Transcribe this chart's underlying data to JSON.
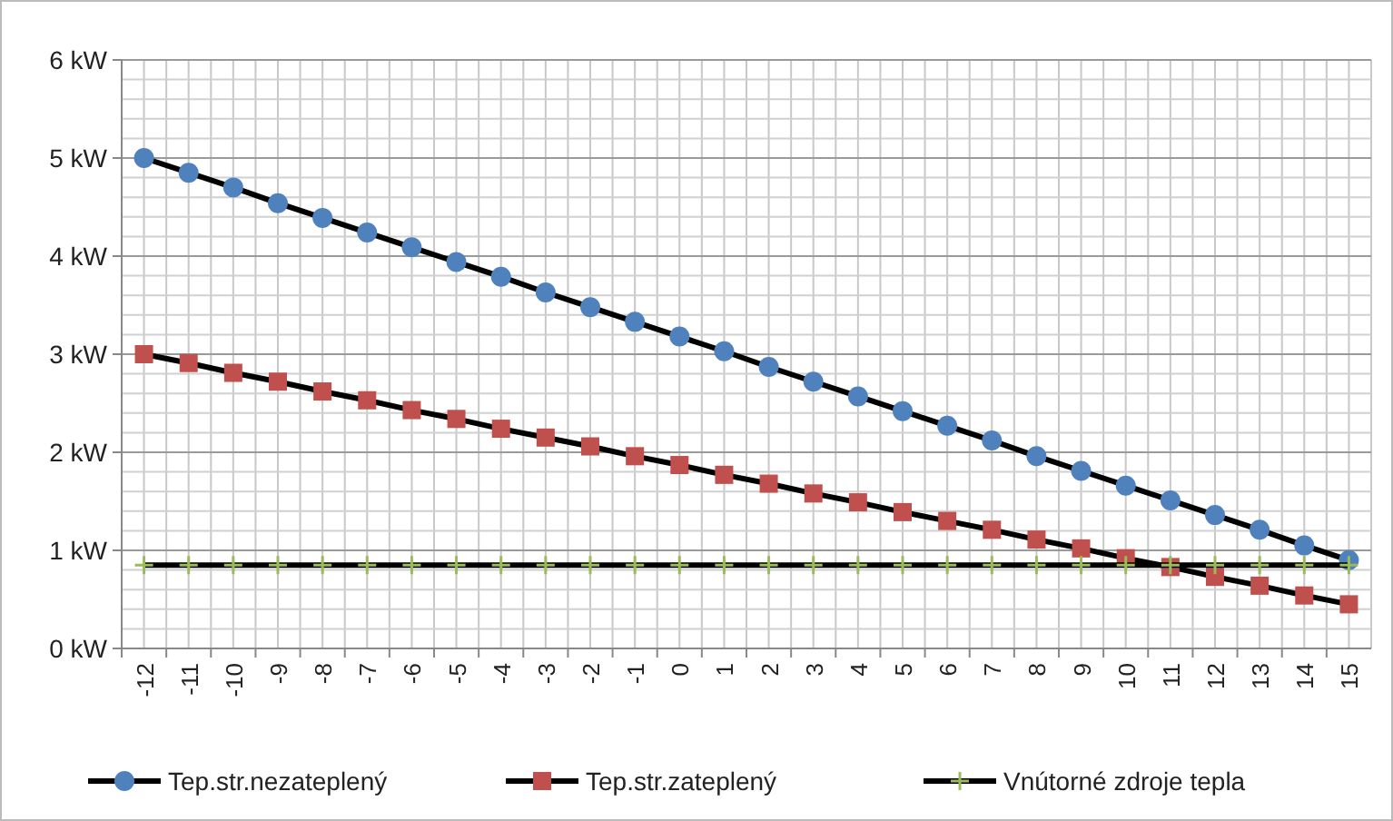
{
  "chart_data": {
    "type": "line",
    "categories": [
      "-12",
      "-11",
      "-10",
      "-9",
      "-8",
      "-7",
      "-6",
      "-5",
      "-4",
      "-3",
      "-2",
      "-1",
      "0",
      "1",
      "2",
      "3",
      "4",
      "5",
      "6",
      "7",
      "8",
      "9",
      "10",
      "11",
      "12",
      "13",
      "14",
      "15"
    ],
    "series": [
      {
        "name": "Tep.str.nezateplený",
        "color": "#4f81bd",
        "marker": "circle",
        "values": [
          5.0,
          4.85,
          4.7,
          4.54,
          4.39,
          4.24,
          4.09,
          3.94,
          3.79,
          3.63,
          3.48,
          3.33,
          3.18,
          3.03,
          2.87,
          2.72,
          2.57,
          2.42,
          2.27,
          2.12,
          1.96,
          1.81,
          1.66,
          1.51,
          1.36,
          1.21,
          1.05,
          0.9
        ]
      },
      {
        "name": "Tep.str.zateplený",
        "color": "#c0504d",
        "marker": "square",
        "values": [
          3.0,
          2.91,
          2.81,
          2.72,
          2.62,
          2.53,
          2.43,
          2.34,
          2.24,
          2.15,
          2.06,
          1.96,
          1.87,
          1.77,
          1.68,
          1.58,
          1.49,
          1.39,
          1.3,
          1.21,
          1.11,
          1.02,
          0.92,
          0.83,
          0.73,
          0.64,
          0.54,
          0.45
        ]
      },
      {
        "name": "Vnútorné zdroje tepla",
        "color": "#9bbb59",
        "marker": "cross",
        "values": [
          0.85,
          0.85,
          0.85,
          0.85,
          0.85,
          0.85,
          0.85,
          0.85,
          0.85,
          0.85,
          0.85,
          0.85,
          0.85,
          0.85,
          0.85,
          0.85,
          0.85,
          0.85,
          0.85,
          0.85,
          0.85,
          0.85,
          0.85,
          0.85,
          0.85,
          0.85,
          0.85,
          0.85
        ]
      }
    ],
    "ylim": [
      0,
      6
    ],
    "yticks": [
      {
        "value": 0,
        "label": "0 kW"
      },
      {
        "value": 0.2,
        "label": null
      },
      {
        "value": 0.4,
        "label": null
      },
      {
        "value": 0.6,
        "label": null
      },
      {
        "value": 0.8,
        "label": null
      },
      {
        "value": 1,
        "label": "1 kW"
      },
      {
        "value": 1.2,
        "label": null
      },
      {
        "value": 1.4,
        "label": null
      },
      {
        "value": 1.6,
        "label": null
      },
      {
        "value": 1.8,
        "label": null
      },
      {
        "value": 2,
        "label": "2 kW"
      },
      {
        "value": 2.2,
        "label": null
      },
      {
        "value": 2.4,
        "label": null
      },
      {
        "value": 2.6,
        "label": null
      },
      {
        "value": 2.8,
        "label": null
      },
      {
        "value": 3,
        "label": "3 kW"
      },
      {
        "value": 3.2,
        "label": null
      },
      {
        "value": 3.4,
        "label": null
      },
      {
        "value": 3.6,
        "label": null
      },
      {
        "value": 3.8,
        "label": null
      },
      {
        "value": 4,
        "label": "4 kW"
      },
      {
        "value": 4.2,
        "label": null
      },
      {
        "value": 4.4,
        "label": null
      },
      {
        "value": 4.6,
        "label": null
      },
      {
        "value": 4.8,
        "label": null
      },
      {
        "value": 5,
        "label": "5 kW"
      },
      {
        "value": 5.2,
        "label": null
      },
      {
        "value": 5.4,
        "label": null
      },
      {
        "value": 5.6,
        "label": null
      },
      {
        "value": 5.8,
        "label": null
      },
      {
        "value": 6,
        "label": "6 kW"
      }
    ],
    "grid": true,
    "legend": "bottom",
    "line_style": "solid"
  }
}
